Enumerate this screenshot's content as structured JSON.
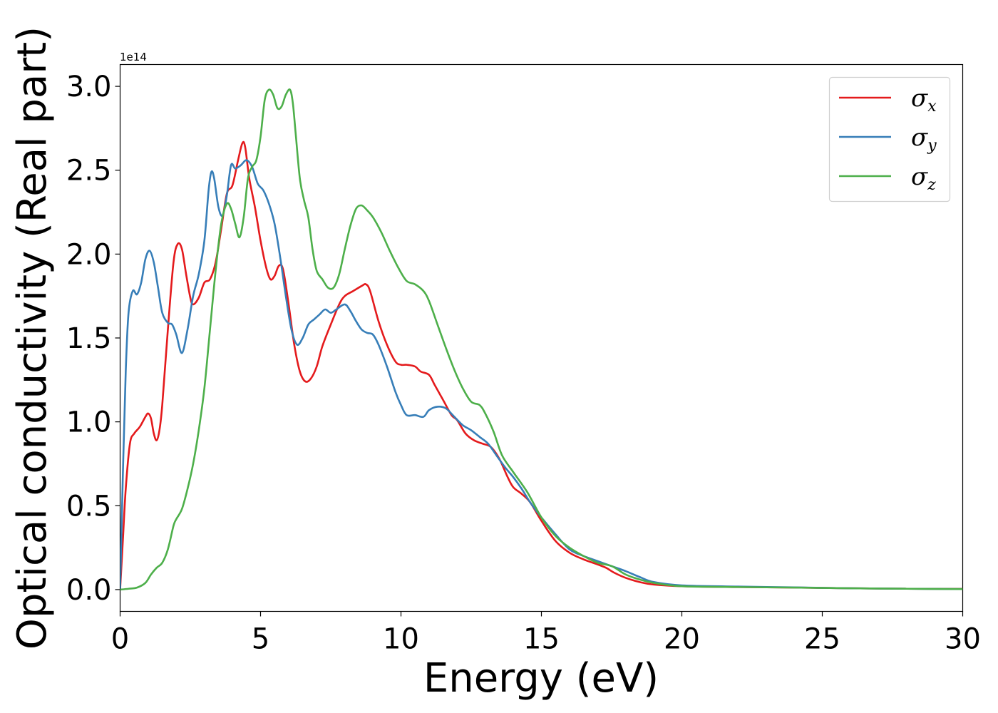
{
  "chart_data": {
    "type": "line",
    "title": "",
    "xlabel": "Energy (eV)",
    "ylabel": "Optical conductivity (Real part)",
    "y_offset_label": "1e14",
    "xlim": [
      0,
      30
    ],
    "ylim": [
      -0.13,
      3.13
    ],
    "x_ticks": [
      0,
      5,
      10,
      15,
      20,
      25,
      30
    ],
    "x_tick_labels": [
      "0",
      "5",
      "10",
      "15",
      "20",
      "25",
      "30"
    ],
    "y_ticks": [
      0.0,
      0.5,
      1.0,
      1.5,
      2.0,
      2.5,
      3.0
    ],
    "y_tick_labels": [
      "0.0",
      "0.5",
      "1.0",
      "1.5",
      "2.0",
      "2.5",
      "3.0"
    ],
    "grid": false,
    "legend_position": "top-right",
    "series": [
      {
        "name": "σx",
        "symbol": "σ",
        "subscript": "x",
        "color": "#e41a1c",
        "x": [
          0,
          0.1,
          0.2,
          0.35,
          0.5,
          0.7,
          0.9,
          1.0,
          1.1,
          1.2,
          1.3,
          1.4,
          1.5,
          1.7,
          1.9,
          2.05,
          2.2,
          2.35,
          2.5,
          2.6,
          2.8,
          3.0,
          3.2,
          3.4,
          3.6,
          3.8,
          4.0,
          4.2,
          4.35,
          4.45,
          4.6,
          4.8,
          5.0,
          5.2,
          5.35,
          5.5,
          5.65,
          5.8,
          6.0,
          6.2,
          6.4,
          6.6,
          6.8,
          7.0,
          7.2,
          7.5,
          7.8,
          8.0,
          8.3,
          8.6,
          8.75,
          8.9,
          9.2,
          9.5,
          9.8,
          10.0,
          10.2,
          10.5,
          10.7,
          11.0,
          11.2,
          11.5,
          11.8,
          12.0,
          12.3,
          12.6,
          12.9,
          13.2,
          13.5,
          13.8,
          14.0,
          14.3,
          14.6,
          15.0,
          15.5,
          16.0,
          16.5,
          17.0,
          17.3,
          17.6,
          18.0,
          18.5,
          19.0,
          20.0,
          22.0,
          24.0,
          26.0,
          28.0,
          30.0
        ],
        "values": [
          0,
          0.3,
          0.6,
          0.87,
          0.93,
          0.97,
          1.03,
          1.05,
          1.02,
          0.93,
          0.89,
          0.95,
          1.1,
          1.55,
          1.95,
          2.06,
          2.03,
          1.88,
          1.74,
          1.7,
          1.74,
          1.83,
          1.85,
          1.95,
          2.15,
          2.36,
          2.41,
          2.56,
          2.66,
          2.64,
          2.45,
          2.28,
          2.08,
          1.92,
          1.85,
          1.87,
          1.93,
          1.91,
          1.7,
          1.46,
          1.3,
          1.24,
          1.26,
          1.33,
          1.45,
          1.58,
          1.7,
          1.75,
          1.78,
          1.81,
          1.82,
          1.78,
          1.6,
          1.46,
          1.36,
          1.34,
          1.34,
          1.33,
          1.3,
          1.28,
          1.22,
          1.13,
          1.04,
          1.01,
          0.93,
          0.89,
          0.87,
          0.85,
          0.78,
          0.67,
          0.61,
          0.57,
          0.52,
          0.41,
          0.29,
          0.22,
          0.18,
          0.15,
          0.13,
          0.1,
          0.07,
          0.045,
          0.03,
          0.02,
          0.015,
          0.012,
          0.008,
          0.005,
          0.004
        ]
      },
      {
        "name": "σy",
        "symbol": "σ",
        "subscript": "y",
        "color": "#377eb8",
        "x": [
          0,
          0.1,
          0.2,
          0.3,
          0.45,
          0.6,
          0.75,
          0.9,
          1.05,
          1.2,
          1.35,
          1.5,
          1.7,
          1.85,
          2.0,
          2.2,
          2.4,
          2.6,
          2.8,
          3.0,
          3.15,
          3.25,
          3.35,
          3.5,
          3.65,
          3.8,
          3.95,
          4.1,
          4.3,
          4.5,
          4.7,
          4.9,
          5.1,
          5.3,
          5.5,
          5.7,
          5.9,
          6.1,
          6.3,
          6.5,
          6.7,
          6.9,
          7.1,
          7.3,
          7.5,
          7.7,
          8.0,
          8.2,
          8.4,
          8.6,
          8.8,
          9.0,
          9.2,
          9.5,
          9.8,
          10.0,
          10.2,
          10.5,
          10.8,
          11.0,
          11.3,
          11.6,
          11.9,
          12.2,
          12.5,
          12.8,
          13.1,
          13.4,
          13.7,
          14.0,
          14.3,
          14.6,
          15.0,
          15.5,
          16.0,
          16.5,
          17.0,
          17.5,
          18.0,
          18.5,
          19.0,
          20.0,
          22.0,
          24.0,
          26.0,
          28.0,
          30.0
        ],
        "values": [
          0,
          0.7,
          1.3,
          1.65,
          1.78,
          1.76,
          1.83,
          1.97,
          2.02,
          1.95,
          1.8,
          1.65,
          1.59,
          1.58,
          1.52,
          1.41,
          1.55,
          1.75,
          1.88,
          2.08,
          2.38,
          2.49,
          2.45,
          2.28,
          2.23,
          2.35,
          2.53,
          2.51,
          2.53,
          2.56,
          2.52,
          2.42,
          2.38,
          2.3,
          2.18,
          1.98,
          1.75,
          1.55,
          1.46,
          1.5,
          1.58,
          1.61,
          1.64,
          1.67,
          1.65,
          1.67,
          1.7,
          1.66,
          1.6,
          1.55,
          1.53,
          1.52,
          1.46,
          1.33,
          1.18,
          1.1,
          1.04,
          1.04,
          1.03,
          1.07,
          1.09,
          1.08,
          1.03,
          0.98,
          0.95,
          0.91,
          0.87,
          0.8,
          0.73,
          0.67,
          0.6,
          0.52,
          0.43,
          0.33,
          0.24,
          0.2,
          0.17,
          0.14,
          0.11,
          0.075,
          0.045,
          0.025,
          0.018,
          0.013,
          0.008,
          0.005,
          0.003
        ]
      },
      {
        "name": "σz",
        "symbol": "σ",
        "subscript": "z",
        "color": "#4daf4a",
        "x": [
          0,
          0.3,
          0.6,
          0.9,
          1.1,
          1.3,
          1.5,
          1.7,
          1.9,
          2.0,
          2.2,
          2.4,
          2.6,
          2.8,
          3.0,
          3.2,
          3.4,
          3.6,
          3.8,
          3.95,
          4.1,
          4.25,
          4.4,
          4.55,
          4.7,
          4.85,
          5.0,
          5.15,
          5.3,
          5.45,
          5.6,
          5.75,
          5.9,
          6.05,
          6.15,
          6.25,
          6.4,
          6.55,
          6.7,
          6.85,
          7.0,
          7.2,
          7.4,
          7.6,
          7.8,
          8.0,
          8.2,
          8.4,
          8.6,
          8.8,
          9.0,
          9.3,
          9.6,
          9.9,
          10.2,
          10.5,
          10.8,
          11.0,
          11.3,
          11.6,
          11.9,
          12.2,
          12.5,
          12.8,
          13.0,
          13.3,
          13.6,
          14.0,
          14.5,
          15.0,
          15.5,
          16.0,
          16.5,
          17.0,
          17.5,
          18.0,
          18.5,
          19.0,
          20.0,
          22.0,
          24.0,
          26.0,
          28.0,
          30.0
        ],
        "values": [
          0,
          0.005,
          0.012,
          0.04,
          0.09,
          0.13,
          0.16,
          0.24,
          0.38,
          0.42,
          0.48,
          0.6,
          0.75,
          0.95,
          1.2,
          1.55,
          1.9,
          2.18,
          2.3,
          2.27,
          2.18,
          2.1,
          2.22,
          2.45,
          2.52,
          2.56,
          2.7,
          2.92,
          2.98,
          2.95,
          2.87,
          2.88,
          2.95,
          2.98,
          2.9,
          2.72,
          2.45,
          2.32,
          2.22,
          2.03,
          1.9,
          1.85,
          1.8,
          1.8,
          1.88,
          2.03,
          2.17,
          2.27,
          2.29,
          2.26,
          2.22,
          2.13,
          2.02,
          1.92,
          1.84,
          1.82,
          1.78,
          1.72,
          1.58,
          1.44,
          1.31,
          1.2,
          1.12,
          1.1,
          1.05,
          0.94,
          0.8,
          0.7,
          0.58,
          0.43,
          0.32,
          0.25,
          0.2,
          0.16,
          0.14,
          0.09,
          0.06,
          0.04,
          0.02,
          0.015,
          0.012,
          0.008,
          0.005,
          0.003
        ]
      }
    ]
  }
}
